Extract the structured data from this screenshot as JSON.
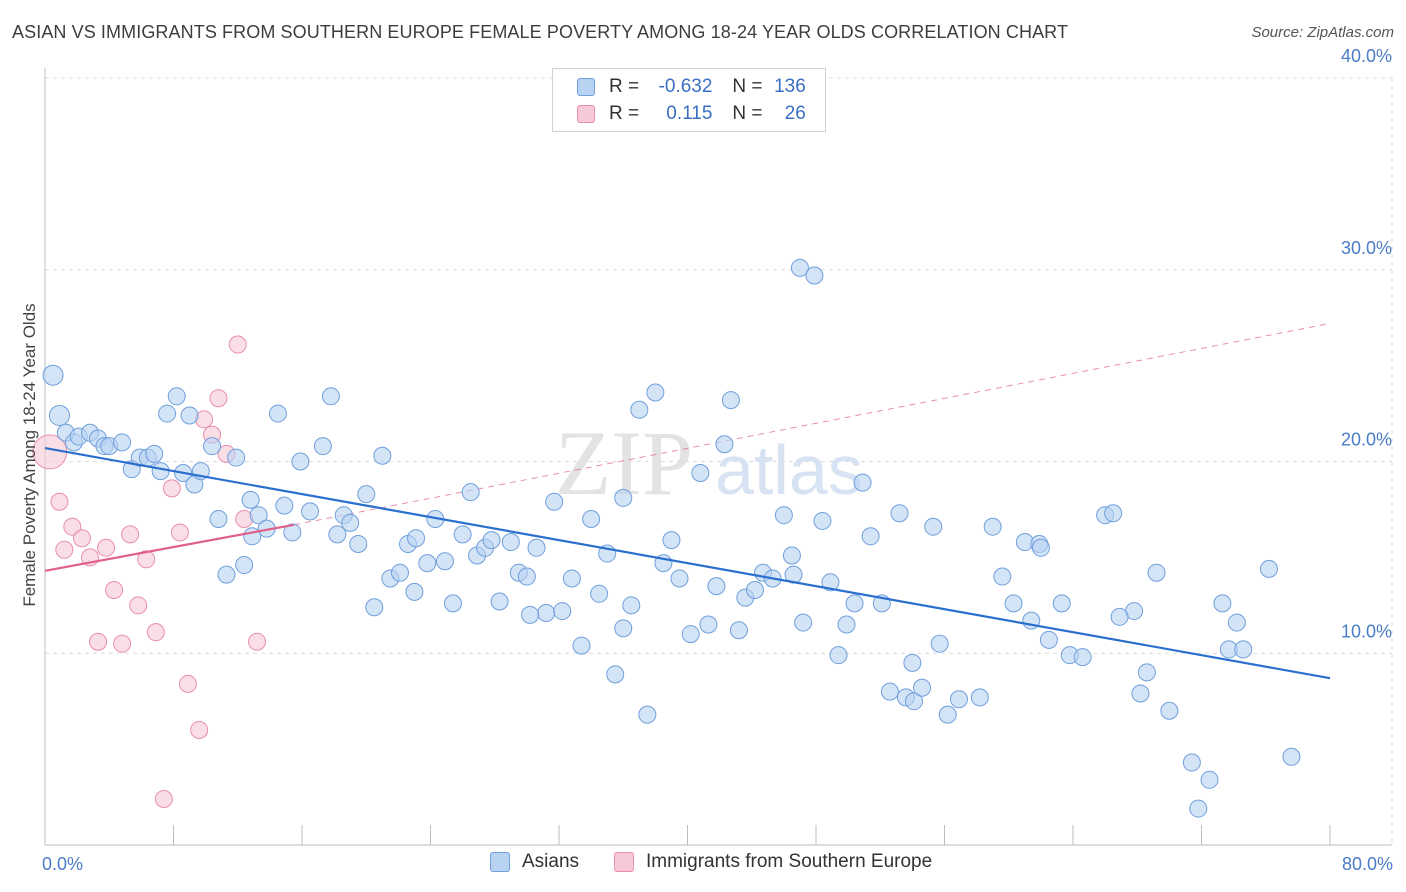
{
  "header": {
    "title": "ASIAN VS IMMIGRANTS FROM SOUTHERN EUROPE FEMALE POVERTY AMONG 18-24 YEAR OLDS CORRELATION CHART",
    "source": "Source: ZipAtlas.com"
  },
  "legend": {
    "rows": [
      {
        "r_label": "R =",
        "r_value": "-0.632",
        "n_label": "N =",
        "n_value": "136"
      },
      {
        "r_label": "R =",
        "r_value": "0.115",
        "n_label": "N =",
        "n_value": "26"
      }
    ]
  },
  "watermark": {
    "zip": "ZIP",
    "atlas": "atlas"
  },
  "colors": {
    "asians_fill": "#b8d2f2",
    "asians_stroke": "#6f9fdc",
    "asians_line": "#2b6fce",
    "immigrants_fill": "#f7c8d6",
    "immigrants_stroke": "#e88fab",
    "immigrants_line": "#e0608a",
    "grid": "#dcdcdc",
    "tick_label": "#4a7cc7"
  },
  "chart_data": {
    "type": "scatter",
    "title": "ASIAN VS IMMIGRANTS FROM SOUTHERN EUROPE FEMALE POVERTY AMONG 18-24 YEAR OLDS CORRELATION CHART",
    "xlabel": "",
    "ylabel": "Female Poverty Among 18-24 Year Olds",
    "xlim": [
      0,
      80
    ],
    "ylim": [
      0,
      40
    ],
    "x_tick_labels": [
      "0.0%",
      "80.0%"
    ],
    "y_ticks": [
      10,
      20,
      30,
      40
    ],
    "y_tick_labels": [
      "10.0%",
      "20.0%",
      "30.0%",
      "40.0%"
    ],
    "series": [
      {
        "name": "Asians",
        "r": -0.632,
        "n": 136,
        "trend": {
          "x": [
            0,
            80
          ],
          "y": [
            20.7,
            8.7
          ],
          "style": "solid"
        },
        "points": [
          [
            0.5,
            24.5
          ],
          [
            0.9,
            22.4
          ],
          [
            1.3,
            21.5
          ],
          [
            1.8,
            21.0
          ],
          [
            2.1,
            21.3
          ],
          [
            2.8,
            21.5
          ],
          [
            3.3,
            21.2
          ],
          [
            3.7,
            20.8
          ],
          [
            4.0,
            20.8
          ],
          [
            4.8,
            21.0
          ],
          [
            5.4,
            19.6
          ],
          [
            5.9,
            20.2
          ],
          [
            6.4,
            20.2
          ],
          [
            6.8,
            20.4
          ],
          [
            7.2,
            19.5
          ],
          [
            7.6,
            22.5
          ],
          [
            8.2,
            23.4
          ],
          [
            8.6,
            19.4
          ],
          [
            9.3,
            18.8
          ],
          [
            9.7,
            19.5
          ],
          [
            10.4,
            20.8
          ],
          [
            10.8,
            17.0
          ],
          [
            11.3,
            14.1
          ],
          [
            11.9,
            20.2
          ],
          [
            12.4,
            14.6
          ],
          [
            12.8,
            18.0
          ],
          [
            13.3,
            17.2
          ],
          [
            13.8,
            16.5
          ],
          [
            14.5,
            22.5
          ],
          [
            14.9,
            17.7
          ],
          [
            15.4,
            16.3
          ],
          [
            15.9,
            20.0
          ],
          [
            16.5,
            17.4
          ],
          [
            17.3,
            20.8
          ],
          [
            17.8,
            23.4
          ],
          [
            18.2,
            16.2
          ],
          [
            18.6,
            17.2
          ],
          [
            19.0,
            16.8
          ],
          [
            19.5,
            15.7
          ],
          [
            20.0,
            18.3
          ],
          [
            20.5,
            12.4
          ],
          [
            21.0,
            20.3
          ],
          [
            21.5,
            13.9
          ],
          [
            22.1,
            14.2
          ],
          [
            22.6,
            15.7
          ],
          [
            23.1,
            16.0
          ],
          [
            23.8,
            14.7
          ],
          [
            24.3,
            17.0
          ],
          [
            24.9,
            14.8
          ],
          [
            25.4,
            12.6
          ],
          [
            26.0,
            16.2
          ],
          [
            26.5,
            18.4
          ],
          [
            26.9,
            15.1
          ],
          [
            27.4,
            15.5
          ],
          [
            27.8,
            15.9
          ],
          [
            28.3,
            12.7
          ],
          [
            29.0,
            15.8
          ],
          [
            29.5,
            14.2
          ],
          [
            30.0,
            14.0
          ],
          [
            30.6,
            15.5
          ],
          [
            31.2,
            12.1
          ],
          [
            31.7,
            17.9
          ],
          [
            32.2,
            12.2
          ],
          [
            32.8,
            13.9
          ],
          [
            33.4,
            10.4
          ],
          [
            34.0,
            17.0
          ],
          [
            34.5,
            13.1
          ],
          [
            35.0,
            15.2
          ],
          [
            35.5,
            8.9
          ],
          [
            36.0,
            18.1
          ],
          [
            36.5,
            12.5
          ],
          [
            37.0,
            22.7
          ],
          [
            37.5,
            6.8
          ],
          [
            38.0,
            23.6
          ],
          [
            38.5,
            14.7
          ],
          [
            39.0,
            15.9
          ],
          [
            39.5,
            13.9
          ],
          [
            40.2,
            11.0
          ],
          [
            40.8,
            19.4
          ],
          [
            41.3,
            11.5
          ],
          [
            41.8,
            13.5
          ],
          [
            42.3,
            20.9
          ],
          [
            42.7,
            23.2
          ],
          [
            43.2,
            11.2
          ],
          [
            43.6,
            12.9
          ],
          [
            44.2,
            13.3
          ],
          [
            44.7,
            14.2
          ],
          [
            45.3,
            13.9
          ],
          [
            46.0,
            17.2
          ],
          [
            46.5,
            15.1
          ],
          [
            47.0,
            30.1
          ],
          [
            47.2,
            11.6
          ],
          [
            47.9,
            29.7
          ],
          [
            48.4,
            16.9
          ],
          [
            48.9,
            13.7
          ],
          [
            49.4,
            9.9
          ],
          [
            49.9,
            11.5
          ],
          [
            50.4,
            12.6
          ],
          [
            50.9,
            18.9
          ],
          [
            51.4,
            16.1
          ],
          [
            52.1,
            12.6
          ],
          [
            52.6,
            8.0
          ],
          [
            53.2,
            17.3
          ],
          [
            53.6,
            7.7
          ],
          [
            54.1,
            7.5
          ],
          [
            54.6,
            8.2
          ],
          [
            55.3,
            16.6
          ],
          [
            55.7,
            10.5
          ],
          [
            56.2,
            6.8
          ],
          [
            56.9,
            7.6
          ],
          [
            58.2,
            7.7
          ],
          [
            59.0,
            16.6
          ],
          [
            59.6,
            14.0
          ],
          [
            60.3,
            12.6
          ],
          [
            61.0,
            15.8
          ],
          [
            61.4,
            11.7
          ],
          [
            61.9,
            15.7
          ],
          [
            62.5,
            10.7
          ],
          [
            63.3,
            12.6
          ],
          [
            63.8,
            9.9
          ],
          [
            64.6,
            9.8
          ],
          [
            66.0,
            17.2
          ],
          [
            66.5,
            17.3
          ],
          [
            67.8,
            12.2
          ],
          [
            68.2,
            7.9
          ],
          [
            68.6,
            9.0
          ],
          [
            69.2,
            14.2
          ],
          [
            70.0,
            7.0
          ],
          [
            71.4,
            4.3
          ],
          [
            71.8,
            1.9
          ],
          [
            72.5,
            3.4
          ],
          [
            73.3,
            12.6
          ],
          [
            73.7,
            10.2
          ],
          [
            74.2,
            11.6
          ],
          [
            74.6,
            10.2
          ],
          [
            76.2,
            14.4
          ],
          [
            77.6,
            4.6
          ],
          [
            62.0,
            15.5
          ],
          [
            46.6,
            14.1
          ],
          [
            36.0,
            11.3
          ],
          [
            9.0,
            22.4
          ],
          [
            12.9,
            16.1
          ],
          [
            23.0,
            13.2
          ],
          [
            30.2,
            12.0
          ],
          [
            54.0,
            9.5
          ],
          [
            66.9,
            11.9
          ]
        ]
      },
      {
        "name": "Immigrants from Southern Europe",
        "r": 0.115,
        "n": 26,
        "trend": {
          "x": [
            0,
            15.5
          ],
          "y": [
            14.3,
            16.7
          ],
          "x_dashed": [
            15.5,
            80
          ],
          "y_dashed": [
            16.7,
            27.2
          ]
        },
        "points": [
          [
            0.3,
            20.5
          ],
          [
            0.9,
            17.9
          ],
          [
            1.2,
            15.4
          ],
          [
            1.7,
            16.6
          ],
          [
            2.3,
            16.0
          ],
          [
            2.8,
            15.0
          ],
          [
            3.3,
            10.6
          ],
          [
            3.8,
            15.5
          ],
          [
            4.3,
            13.3
          ],
          [
            4.8,
            10.5
          ],
          [
            5.3,
            16.2
          ],
          [
            5.8,
            12.5
          ],
          [
            6.3,
            14.9
          ],
          [
            6.9,
            11.1
          ],
          [
            7.4,
            2.4
          ],
          [
            7.9,
            18.6
          ],
          [
            8.4,
            16.3
          ],
          [
            8.9,
            8.4
          ],
          [
            9.6,
            6.0
          ],
          [
            9.9,
            22.2
          ],
          [
            10.4,
            21.4
          ],
          [
            10.8,
            23.3
          ],
          [
            11.3,
            20.4
          ],
          [
            12.4,
            17.0
          ],
          [
            12.0,
            26.1
          ],
          [
            13.2,
            10.6
          ]
        ]
      }
    ]
  },
  "bottom_legend": {
    "asians": "Asians",
    "immigrants": "Immigrants from Southern Europe"
  }
}
